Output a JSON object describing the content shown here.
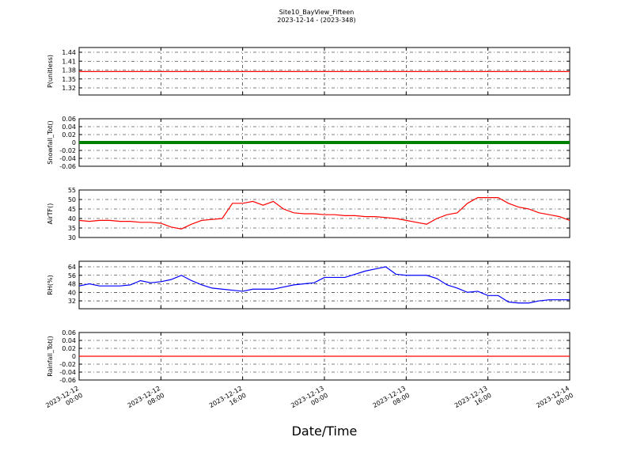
{
  "figure": {
    "title": "Site10_BayView_Fifteen",
    "subtitle": "2023-12-14 - (2023-348)",
    "xlabel": "Date/Time",
    "x": [
      "2023-12-12 00:00",
      "2023-12-12 01:00",
      "2023-12-12 02:00",
      "2023-12-12 03:00",
      "2023-12-12 04:00",
      "2023-12-12 05:00",
      "2023-12-12 06:00",
      "2023-12-12 07:00",
      "2023-12-12 08:00",
      "2023-12-12 09:00",
      "2023-12-12 10:00",
      "2023-12-12 11:00",
      "2023-12-12 12:00",
      "2023-12-12 13:00",
      "2023-12-12 14:00",
      "2023-12-12 15:00",
      "2023-12-12 16:00",
      "2023-12-12 17:00",
      "2023-12-12 18:00",
      "2023-12-12 19:00",
      "2023-12-12 20:00",
      "2023-12-12 21:00",
      "2023-12-12 22:00",
      "2023-12-12 23:00",
      "2023-12-13 00:00",
      "2023-12-13 01:00",
      "2023-12-13 02:00",
      "2023-12-13 03:00",
      "2023-12-13 04:00",
      "2023-12-13 05:00",
      "2023-12-13 06:00",
      "2023-12-13 07:00",
      "2023-12-13 08:00",
      "2023-12-13 09:00",
      "2023-12-13 10:00",
      "2023-12-13 11:00",
      "2023-12-13 12:00",
      "2023-12-13 13:00",
      "2023-12-13 14:00",
      "2023-12-13 15:00",
      "2023-12-13 16:00",
      "2023-12-13 17:00",
      "2023-12-13 18:00",
      "2023-12-13 19:00",
      "2023-12-13 20:00",
      "2023-12-13 21:00",
      "2023-12-13 22:00",
      "2023-12-13 23:00",
      "2023-12-14 00:00"
    ],
    "xlim": [
      "2023-12-12 00:00",
      "2023-12-14 00:00"
    ],
    "xticks": [
      "2023-12-12 00:00",
      "2023-12-12 08:00",
      "2023-12-12 16:00",
      "2023-12-13 00:00",
      "2023-12-13 08:00",
      "2023-12-13 16:00",
      "2023-12-14 00:00"
    ],
    "grid": true
  },
  "chart_data": [
    {
      "type": "line",
      "ylabel": "P(unitless)",
      "ylim": [
        1.296,
        1.456
      ],
      "yticks": [
        1.32,
        1.35,
        1.38,
        1.41,
        1.44
      ],
      "series": [
        {
          "color": "#ff0000",
          "values": [
            1.375,
            1.375,
            1.375,
            1.375,
            1.375,
            1.375,
            1.375,
            1.375,
            1.375,
            1.375,
            1.375,
            1.375,
            1.375,
            1.375,
            1.375,
            1.375,
            1.375,
            1.375,
            1.375,
            1.375,
            1.375,
            1.375,
            1.375,
            1.375,
            1.375,
            1.375,
            1.375,
            1.375,
            1.375,
            1.375,
            1.375,
            1.375,
            1.375,
            1.375,
            1.375,
            1.375,
            1.375,
            1.375,
            1.375,
            1.375,
            1.375,
            1.375,
            1.375,
            1.375,
            1.375,
            1.375,
            1.375,
            1.375,
            1.375
          ]
        }
      ]
    },
    {
      "type": "line",
      "ylabel": "Snowfall_Tot()",
      "ylim": [
        -0.06,
        0.06
      ],
      "yticks": [
        -0.06,
        -0.04,
        -0.02,
        0.0,
        0.02,
        0.04,
        0.06
      ],
      "marker": true,
      "series": [
        {
          "color": "#008000",
          "values": [
            0,
            0,
            0,
            0,
            0,
            0,
            0,
            0,
            0,
            0,
            0,
            0,
            0,
            0,
            0,
            0,
            0,
            0,
            0,
            0,
            0,
            0,
            0,
            0,
            0,
            0,
            0,
            0,
            0,
            0,
            0,
            0,
            0,
            0,
            0,
            0,
            0,
            0,
            0,
            0,
            0,
            0,
            0,
            0,
            0,
            0,
            0,
            0,
            0
          ]
        }
      ]
    },
    {
      "type": "line",
      "ylabel": "AirTF()",
      "ylim": [
        30,
        55
      ],
      "yticks": [
        30,
        35,
        40,
        45,
        50,
        55
      ],
      "series": [
        {
          "color": "#ff0000",
          "values": [
            39,
            38.5,
            39,
            39,
            38.5,
            38.5,
            38,
            38,
            37.5,
            35.5,
            34.5,
            37,
            39,
            39.5,
            40,
            48,
            48,
            49,
            47,
            49,
            45,
            43,
            42.5,
            42.5,
            42,
            42,
            41.5,
            41.5,
            41,
            41,
            40.5,
            40,
            39,
            38,
            37,
            40,
            42,
            43,
            48,
            51,
            51,
            51,
            48,
            46,
            45,
            43,
            42,
            41,
            39
          ]
        }
      ]
    },
    {
      "type": "line",
      "ylabel": "RH(%)",
      "ylim": [
        24.6,
        69.2
      ],
      "yticks": [
        32,
        40,
        48,
        56,
        64
      ],
      "series": [
        {
          "color": "#0000ff",
          "values": [
            46,
            48,
            46,
            46,
            46,
            47,
            51,
            49,
            50,
            52,
            56,
            51,
            47,
            44,
            43,
            42,
            41,
            43,
            43,
            43,
            45,
            47,
            48,
            49,
            54,
            54,
            54,
            57,
            60,
            62,
            64,
            57,
            56,
            56,
            56,
            53,
            47,
            44,
            40,
            41,
            37,
            37,
            31,
            30,
            30,
            32,
            33,
            33,
            33
          ]
        }
      ]
    },
    {
      "type": "line",
      "ylabel": "Rainfall_Tot()",
      "ylim": [
        -0.06,
        0.06
      ],
      "yticks": [
        -0.06,
        -0.04,
        -0.02,
        0.0,
        0.02,
        0.04,
        0.06
      ],
      "series": [
        {
          "color": "#ff0000",
          "values": [
            0,
            0,
            0,
            0,
            0,
            0,
            0,
            0,
            0,
            0,
            0,
            0,
            0,
            0,
            0,
            0,
            0,
            0,
            0,
            0,
            0,
            0,
            0,
            0,
            0,
            0,
            0,
            0,
            0,
            0,
            0,
            0,
            0,
            0,
            0,
            0,
            0,
            0,
            0,
            0,
            0,
            0,
            0,
            0,
            0,
            0,
            0,
            0,
            0
          ]
        }
      ]
    }
  ]
}
